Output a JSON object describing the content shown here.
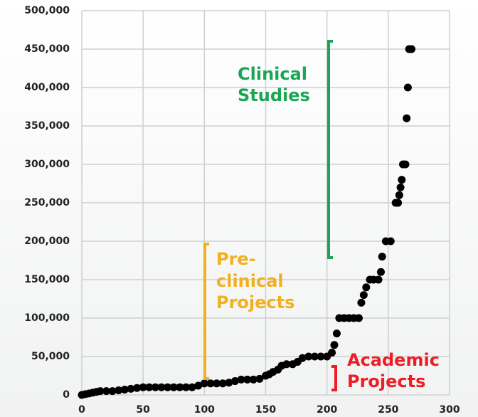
{
  "chart_data": {
    "type": "scatter",
    "x": [
      0,
      3,
      6,
      9,
      12,
      15,
      20,
      25,
      30,
      35,
      40,
      45,
      50,
      55,
      60,
      65,
      70,
      75,
      80,
      85,
      90,
      95,
      100,
      105,
      110,
      115,
      120,
      125,
      130,
      135,
      140,
      145,
      150,
      153,
      156,
      160,
      163,
      167,
      172,
      176,
      180,
      185,
      190,
      195,
      200,
      204,
      206,
      208,
      210,
      214,
      218,
      222,
      226,
      228,
      230,
      232,
      235,
      238,
      242,
      244,
      245,
      248,
      252,
      256,
      258,
      259,
      260,
      261,
      262,
      264,
      265,
      266,
      267,
      269
    ],
    "values": [
      0,
      1000,
      2000,
      3000,
      4000,
      5000,
      5000,
      5000,
      6000,
      7000,
      8000,
      9000,
      10000,
      10000,
      10000,
      10000,
      10000,
      10000,
      10000,
      10000,
      10000,
      12000,
      15000,
      15000,
      15000,
      15000,
      16000,
      18000,
      20000,
      20000,
      20000,
      21000,
      25000,
      27000,
      30000,
      33000,
      38000,
      40000,
      40000,
      43000,
      48000,
      50000,
      50000,
      50000,
      50000,
      55000,
      65000,
      80000,
      100000,
      100000,
      100000,
      100000,
      100000,
      120000,
      130000,
      140000,
      150000,
      150000,
      150000,
      160000,
      180000,
      200000,
      200000,
      250000,
      250000,
      260000,
      270000,
      280000,
      300000,
      300000,
      360000,
      400000,
      450000,
      450000
    ],
    "color": "#000000",
    "xlim": [
      0,
      300
    ],
    "xticks": [
      0,
      50,
      100,
      150,
      200,
      250,
      300
    ],
    "ylim": [
      0,
      500000
    ],
    "yticks": [
      0,
      {
        "value": 50000,
        "label": "50,000"
      },
      {
        "value": 100000,
        "label": "100,000"
      },
      {
        "value": 150000,
        "label": "150,000"
      },
      {
        "value": 200000,
        "label": "200,000"
      },
      {
        "value": 250000,
        "label": "250,000"
      },
      {
        "value": 300000,
        "label": "300,000"
      },
      {
        "value": 350000,
        "label": "350,000"
      },
      {
        "value": 400000,
        "label": "400,000"
      },
      {
        "value": 450000,
        "label": "450,000"
      },
      {
        "value": 500000,
        "label": "500,000"
      }
    ],
    "grid": true,
    "annotations": [
      {
        "lines": [
          "Clinical",
          "Studies"
        ],
        "color": "#1aa655"
      },
      {
        "lines": [
          "Pre-",
          "clinical",
          "Projects"
        ],
        "color": "#f2b01e"
      },
      {
        "lines": [
          "Academic",
          "Projects"
        ],
        "color": "#ee1c25"
      }
    ]
  }
}
